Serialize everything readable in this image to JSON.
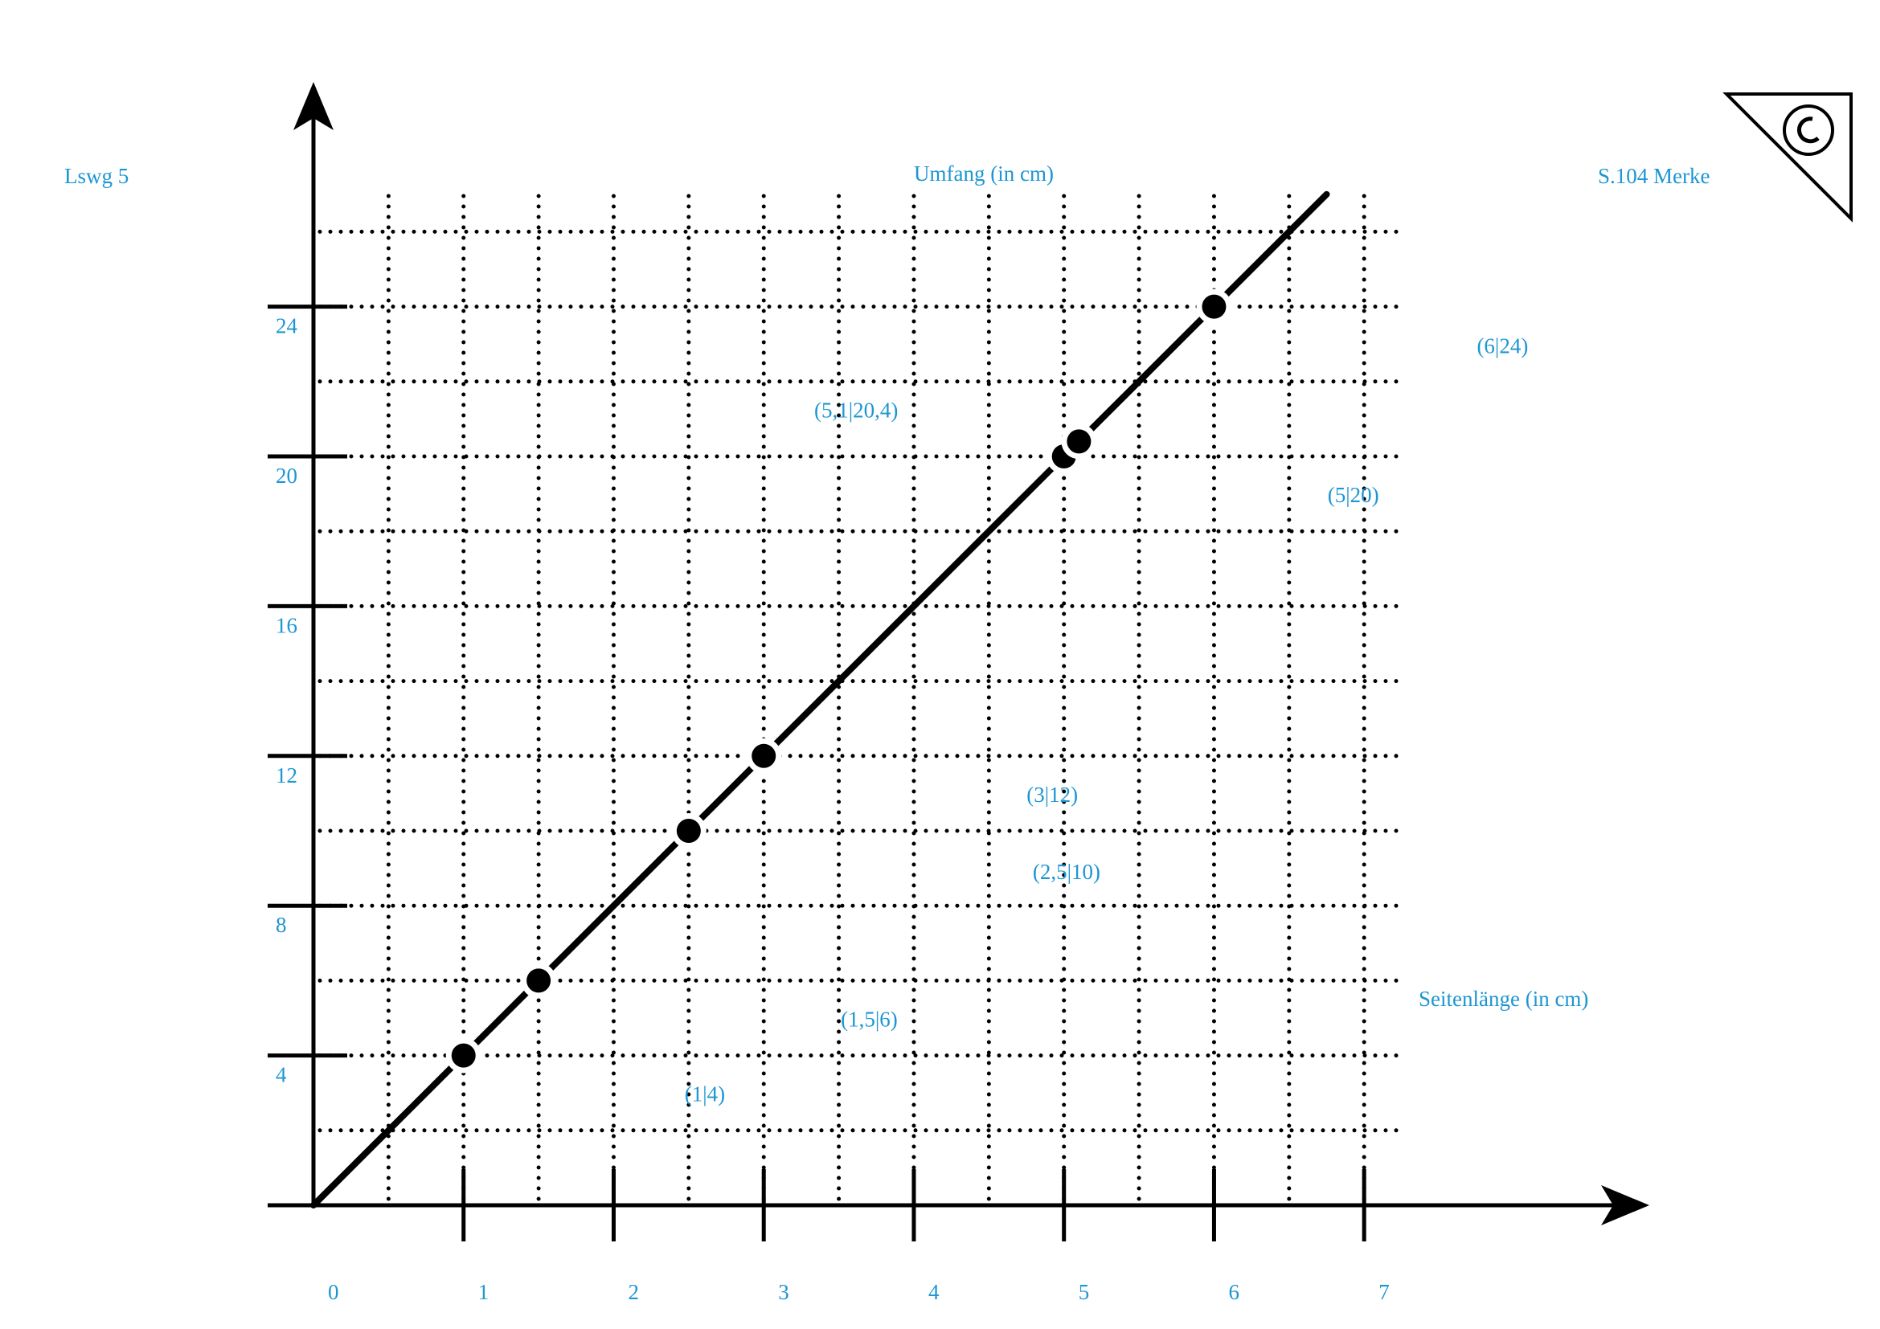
{
  "header": {
    "left": "Lswg 5",
    "right": "S.104 Merke"
  },
  "chart_data": {
    "type": "line",
    "ylabel": "Umfang (in cm)",
    "xlabel": "Seitenlänge (in cm)",
    "xlim": [
      0,
      8.9
    ],
    "ylim": [
      0,
      30
    ],
    "xticks": [
      0,
      1,
      2,
      3,
      4,
      5,
      6,
      7
    ],
    "yticks": [
      4,
      8,
      12,
      16,
      20,
      24
    ],
    "grid": true,
    "color": "#000000",
    "x": [
      1,
      1.5,
      2.5,
      3,
      5,
      5.1,
      6
    ],
    "values": [
      4,
      6,
      10,
      12,
      20,
      20.4,
      24
    ],
    "point_labels": [
      "(1|4)",
      "(1,5|6)",
      "(2,5|10)",
      "(3|12)",
      "(5|20)",
      "(5,1|20,4)",
      "(6|24)"
    ],
    "line": {
      "x": [
        0,
        6.75
      ],
      "values": [
        0,
        27
      ]
    }
  }
}
